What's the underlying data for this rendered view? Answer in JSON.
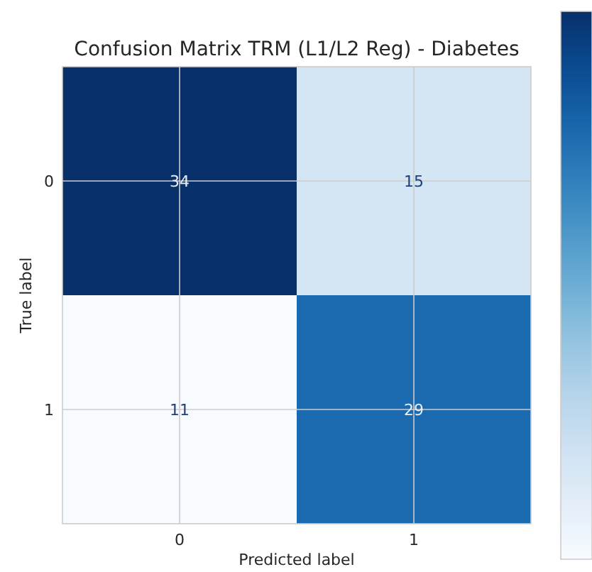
{
  "chart_data": {
    "type": "heatmap",
    "title": "Confusion Matrix TRM (L1/L2 Reg) - Diabetes",
    "xlabel": "Predicted label",
    "ylabel": "True label",
    "categories": [
      "0",
      "1"
    ],
    "y_categories": [
      "0",
      "1"
    ],
    "cells": [
      [
        34,
        15
      ],
      [
        11,
        29
      ]
    ],
    "grid": true,
    "data_labels": true
  }
}
